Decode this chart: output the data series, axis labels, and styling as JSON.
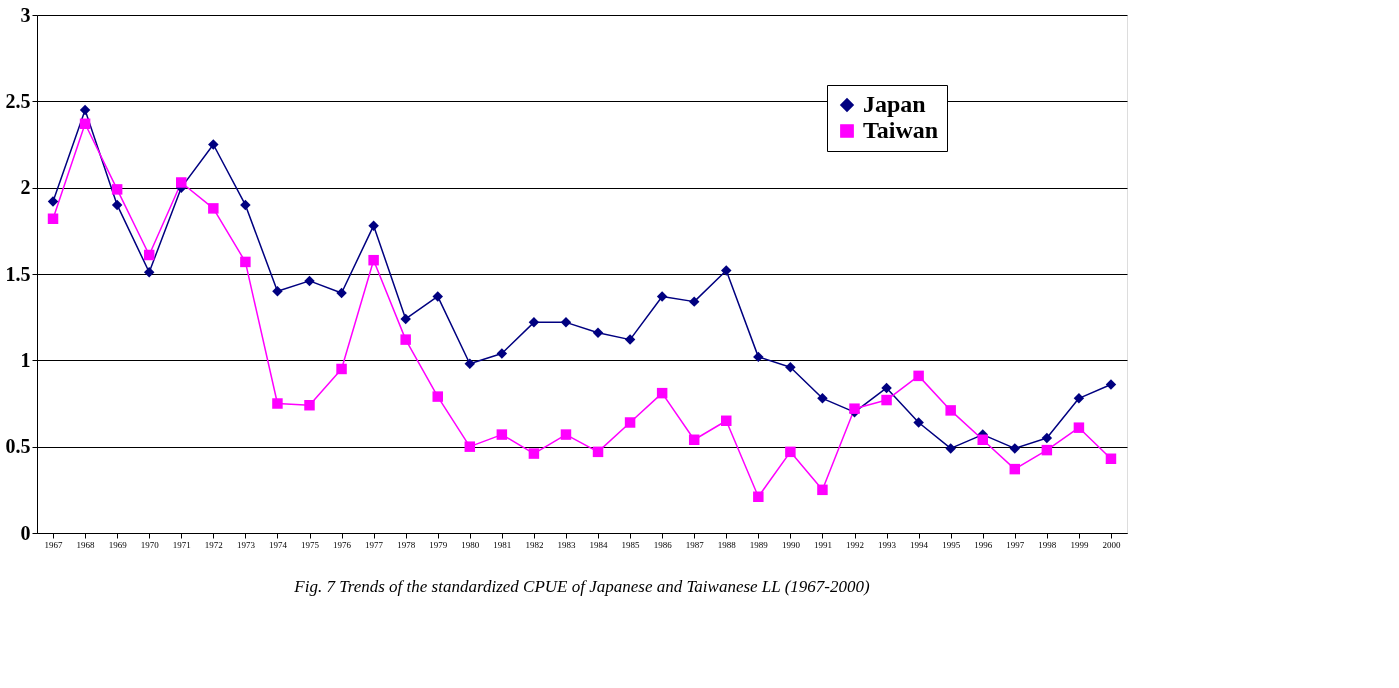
{
  "chart_data": {
    "type": "line",
    "categories": [
      "1967",
      "1968",
      "1969",
      "1970",
      "1971",
      "1972",
      "1973",
      "1974",
      "1975",
      "1976",
      "1977",
      "1978",
      "1979",
      "1980",
      "1981",
      "1982",
      "1983",
      "1984",
      "1985",
      "1986",
      "1987",
      "1988",
      "1989",
      "1990",
      "1991",
      "1992",
      "1993",
      "1994",
      "1995",
      "1996",
      "1997",
      "1998",
      "1999",
      "2000"
    ],
    "series": [
      {
        "name": "Japan",
        "color": "#000080",
        "marker": "diamond",
        "values": [
          1.92,
          2.45,
          1.9,
          1.51,
          2.0,
          2.25,
          1.9,
          1.4,
          1.46,
          1.39,
          1.78,
          1.24,
          1.37,
          0.98,
          1.04,
          1.22,
          1.22,
          1.16,
          1.12,
          1.37,
          1.34,
          1.52,
          1.02,
          0.96,
          0.78,
          0.7,
          0.84,
          0.64,
          0.49,
          0.57,
          0.49,
          0.55,
          0.78,
          0.86
        ]
      },
      {
        "name": "Taiwan",
        "color": "#ff00ff",
        "marker": "square",
        "values": [
          1.82,
          2.37,
          1.99,
          1.61,
          2.03,
          1.88,
          1.57,
          0.75,
          0.74,
          0.95,
          1.58,
          1.12,
          0.79,
          0.5,
          0.57,
          0.46,
          0.57,
          0.47,
          0.64,
          0.81,
          0.54,
          0.65,
          0.21,
          0.47,
          0.25,
          0.72,
          0.77,
          0.91,
          0.71,
          0.54,
          0.37,
          0.48,
          0.61,
          0.43
        ]
      }
    ],
    "ylim": [
      0,
      3
    ],
    "yticks": [
      0,
      0.5,
      1,
      1.5,
      2,
      2.5,
      3
    ],
    "grid": "y",
    "legend": "top right",
    "annotations": [
      "Fig. 7 Trends of the standardized CPUE of Japanese and Taiwanese LL (1967-2000)"
    ]
  }
}
